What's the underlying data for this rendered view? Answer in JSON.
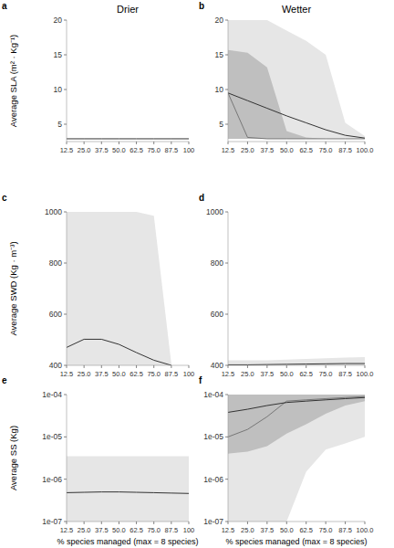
{
  "chart_data": [
    {
      "type": "line",
      "annotation": "a",
      "title": "Drier",
      "y_label": "Average SLA (m² · Kg⁻¹)",
      "x": [
        12.5,
        25,
        37.5,
        50,
        62.5,
        75,
        87.5,
        100
      ],
      "xlim": [
        12.5,
        100
      ],
      "xticks": [
        12.5,
        {
          "value": 25,
          "label": "25.0"
        },
        37.5,
        {
          "value": 50,
          "label": "50.0"
        },
        62.5,
        {
          "value": 75,
          "label": "75.0"
        },
        87.5,
        100
      ],
      "ylim": [
        2.5,
        20
      ],
      "yticks": [
        5,
        10,
        15,
        20
      ],
      "series": [
        {
          "type": "line",
          "color": "#333333",
          "values": [
            2.9,
            2.9,
            2.9,
            2.9,
            2.9,
            2.9,
            2.9,
            2.9
          ]
        }
      ]
    },
    {
      "type": "line",
      "annotation": "b",
      "title": "Wetter",
      "x": [
        12.5,
        25,
        37.5,
        50,
        62.5,
        75,
        87.5,
        100
      ],
      "xlim": [
        12.5,
        100
      ],
      "xticks": [
        12.5,
        {
          "value": 25,
          "label": "25.0"
        },
        37.5,
        {
          "value": 50,
          "label": "50.0"
        },
        62.5,
        {
          "value": 75,
          "label": "75.0"
        },
        87.5,
        {
          "value": 100,
          "label": "100.0"
        }
      ],
      "ylim": [
        2.5,
        20
      ],
      "yticks": [
        5,
        10,
        15,
        20
      ],
      "series": [
        {
          "type": "band",
          "color": "#e6e6e6",
          "lower": [
            2.9,
            2.9,
            2.9,
            2.9,
            2.9,
            2.9,
            2.9,
            2.9
          ],
          "upper": [
            20,
            20,
            20,
            18.5,
            17,
            15,
            5.2,
            3.3
          ]
        },
        {
          "type": "band",
          "color": "#bfbfbf",
          "lower": [
            2.9,
            2.9,
            2.9,
            2.9,
            2.9,
            2.9,
            2.9,
            2.9
          ],
          "upper": [
            15.7,
            15.3,
            13.2,
            4,
            3.1,
            2.9,
            2.9,
            2.9
          ]
        },
        {
          "type": "line",
          "color": "#777777",
          "values": [
            9.5,
            3.1,
            2.9,
            2.9,
            2.9,
            2.9,
            2.9,
            2.9
          ]
        },
        {
          "type": "line",
          "color": "#333333",
          "values": [
            9.5,
            8.4,
            7.3,
            6.2,
            5.2,
            4.2,
            3.4,
            3.0
          ]
        }
      ]
    },
    {
      "type": "line",
      "annotation": "c",
      "y_label": "Average SWD (Kg · m⁻³)",
      "x": [
        12.5,
        25,
        37.5,
        50,
        62.5,
        75,
        87.5,
        100
      ],
      "xlim": [
        12.5,
        100
      ],
      "xticks": [
        12.5,
        {
          "value": 25,
          "label": "25.0"
        },
        37.5,
        {
          "value": 50,
          "label": "50.0"
        },
        62.5,
        {
          "value": 75,
          "label": "75.0"
        },
        87.5,
        100
      ],
      "ylim": [
        400,
        1000
      ],
      "yticks": [
        400,
        600,
        800,
        1000
      ],
      "series": [
        {
          "type": "band",
          "color": "#e6e6e6",
          "lower": [
            400,
            400,
            400,
            400,
            400,
            400,
            400,
            null
          ],
          "upper": [
            1000,
            1000,
            1000,
            1000,
            1000,
            985,
            405,
            null
          ]
        },
        {
          "type": "line",
          "color": "#333333",
          "values": [
            470,
            502,
            502,
            482,
            450,
            420,
            400,
            null
          ]
        }
      ]
    },
    {
      "type": "line",
      "annotation": "d",
      "x": [
        12.5,
        25,
        37.5,
        50,
        62.5,
        75,
        87.5,
        100
      ],
      "xlim": [
        12.5,
        100
      ],
      "xticks": [
        12.5,
        {
          "value": 25,
          "label": "25.0"
        },
        37.5,
        {
          "value": 50,
          "label": "50.0"
        },
        62.5,
        {
          "value": 75,
          "label": "75.0"
        },
        87.5,
        {
          "value": 100,
          "label": "100.0"
        }
      ],
      "ylim": [
        400,
        1000
      ],
      "yticks": [
        400,
        600,
        800,
        1000
      ],
      "series": [
        {
          "type": "band",
          "color": "#e6e6e6",
          "lower": [
            400,
            400,
            400,
            400,
            400,
            400,
            400,
            400
          ],
          "upper": [
            420,
            420,
            420,
            422,
            425,
            428,
            430,
            432
          ]
        },
        {
          "type": "line",
          "color": "#333333",
          "values": [
            402,
            402,
            403,
            404,
            405,
            406,
            407,
            407
          ]
        }
      ]
    },
    {
      "type": "line",
      "annotation": "e",
      "y_label": "Average SS (Kg)",
      "x_label": "% species managed (max = 8 species)",
      "log": "y",
      "x": [
        12.5,
        25,
        37.5,
        50,
        62.5,
        75,
        87.5,
        100
      ],
      "xlim": [
        12.5,
        100
      ],
      "xticks": [
        12.5,
        {
          "value": 25,
          "label": "25.0"
        },
        37.5,
        {
          "value": 50,
          "label": "50.0"
        },
        62.5,
        {
          "value": 75,
          "label": "75.0"
        },
        87.5,
        100
      ],
      "ylim": [
        1e-07,
        0.0001
      ],
      "yticks": [
        {
          "value": 1e-07,
          "label": "1e-07"
        },
        {
          "value": 1e-06,
          "label": "1e-06"
        },
        {
          "value": 1e-05,
          "label": "1e-05"
        },
        {
          "value": 0.0001,
          "label": "1e-04"
        }
      ],
      "series": [
        {
          "type": "band",
          "color": "#e6e6e6",
          "lower": [
            1e-07,
            1e-07,
            1e-07,
            1e-07,
            1e-07,
            1e-07,
            1e-07,
            1e-07
          ],
          "upper": [
            3.5e-06,
            3.5e-06,
            3.5e-06,
            3.5e-06,
            3.5e-06,
            3.5e-06,
            3.5e-06,
            3.5e-06
          ]
        },
        {
          "type": "line",
          "color": "#333333",
          "values": [
            4.8e-07,
            4.9e-07,
            5e-07,
            5e-07,
            4.9e-07,
            4.8e-07,
            4.7e-07,
            4.6e-07
          ]
        }
      ]
    },
    {
      "type": "line",
      "annotation": "f",
      "x_label": "% species managed (max = 8 species)",
      "log": "y",
      "x": [
        12.5,
        25,
        37.5,
        50,
        62.5,
        75,
        87.5,
        100
      ],
      "xlim": [
        12.5,
        100
      ],
      "xticks": [
        12.5,
        {
          "value": 25,
          "label": "25.0"
        },
        37.5,
        {
          "value": 50,
          "label": "50.0"
        },
        62.5,
        {
          "value": 75,
          "label": "75.0"
        },
        87.5,
        {
          "value": 100,
          "label": "100.0"
        }
      ],
      "ylim": [
        1e-07,
        0.0001
      ],
      "yticks": [
        {
          "value": 1e-07,
          "label": "1e-07"
        },
        {
          "value": 1e-06,
          "label": "1e-06"
        },
        {
          "value": 1e-05,
          "label": "1e-05"
        },
        {
          "value": 0.0001,
          "label": "1e-04"
        }
      ],
      "series": [
        {
          "type": "band",
          "color": "#e6e6e6",
          "lower": [
            1e-07,
            1e-07,
            1e-07,
            1e-07,
            1.5e-06,
            5e-06,
            7e-06,
            1e-05
          ],
          "upper": [
            0.0001,
            0.0001,
            0.0001,
            0.0001,
            0.0001,
            0.0001,
            0.0001,
            0.0001
          ]
        },
        {
          "type": "band",
          "color": "#bfbfbf",
          "lower": [
            4e-06,
            4.5e-06,
            6e-06,
            1.2e-05,
            2e-05,
            3.5e-05,
            5.5e-05,
            7e-05
          ],
          "upper": [
            0.0001,
            0.0001,
            0.0001,
            0.0001,
            0.0001,
            0.0001,
            0.0001,
            0.0001
          ]
        },
        {
          "type": "line",
          "color": "#777777",
          "values": [
            1e-05,
            1.5e-05,
            3e-05,
            7e-05,
            7.5e-05,
            8e-05,
            8.5e-05,
            9e-05
          ]
        },
        {
          "type": "line",
          "color": "#333333",
          "values": [
            3.8e-05,
            4.5e-05,
            5.5e-05,
            6.5e-05,
            7e-05,
            7.5e-05,
            8e-05,
            8.5e-05
          ]
        }
      ]
    }
  ]
}
